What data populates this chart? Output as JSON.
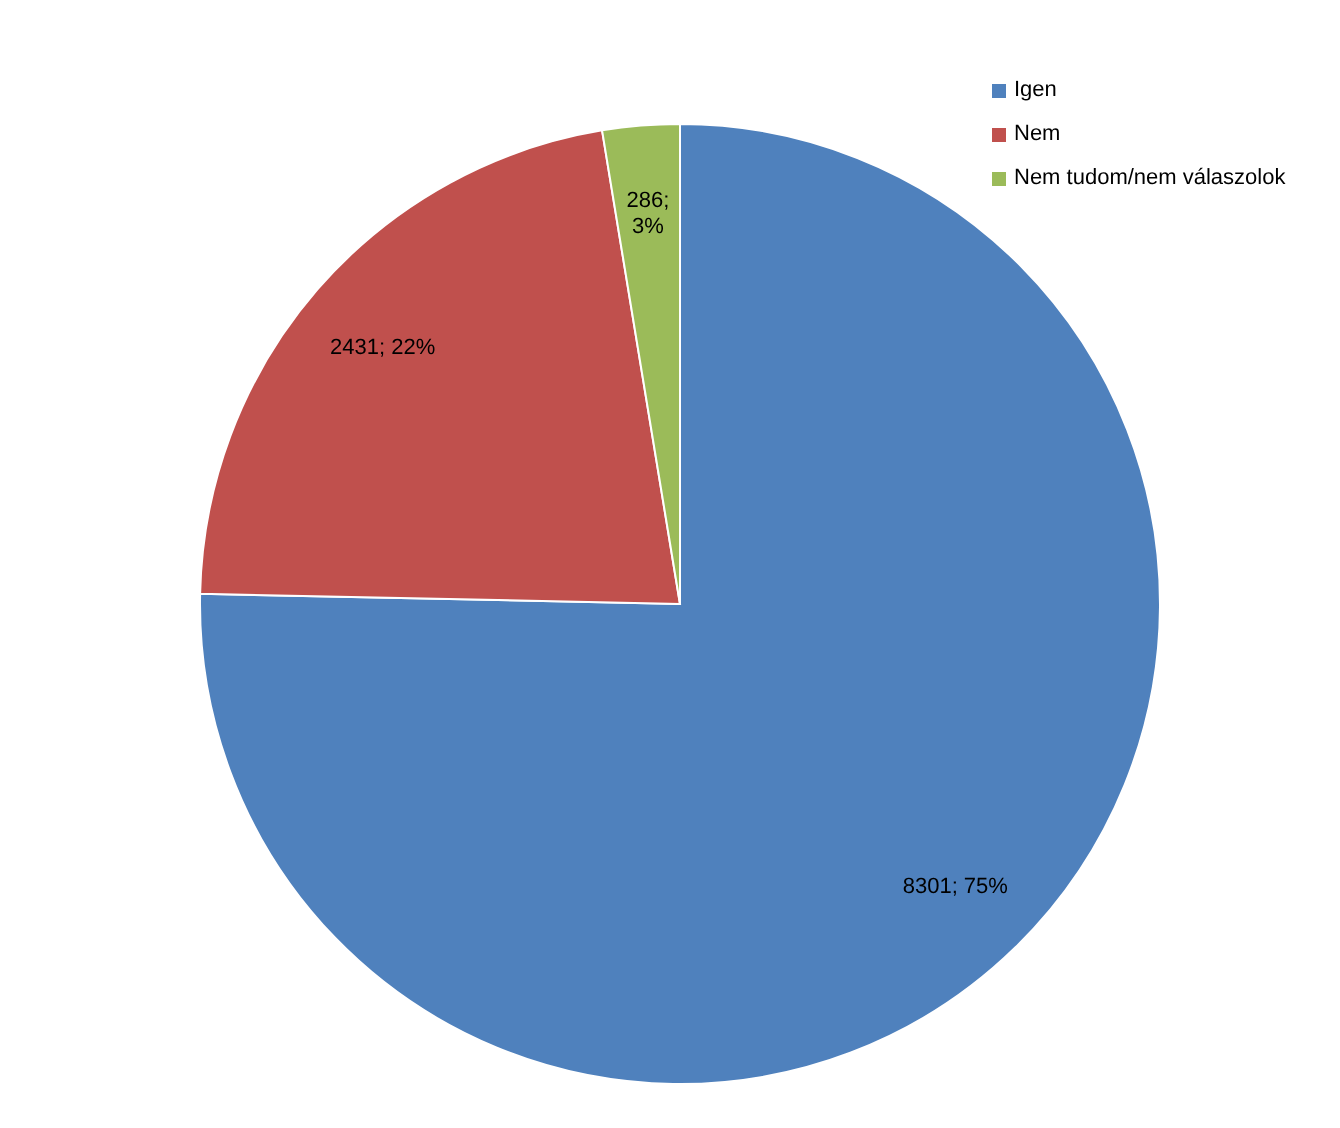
{
  "chart_data": {
    "type": "pie",
    "categories": [
      "Igen",
      "Nem",
      "Nem tudom/nem válaszolok"
    ],
    "values": [
      8301,
      2431,
      286
    ],
    "colors": [
      "#4f81bd",
      "#c0504d",
      "#9bbb59"
    ],
    "value_labels": [
      "8301; 75%",
      "2431; 22%",
      "286; 3%"
    ],
    "legend": "top right"
  }
}
